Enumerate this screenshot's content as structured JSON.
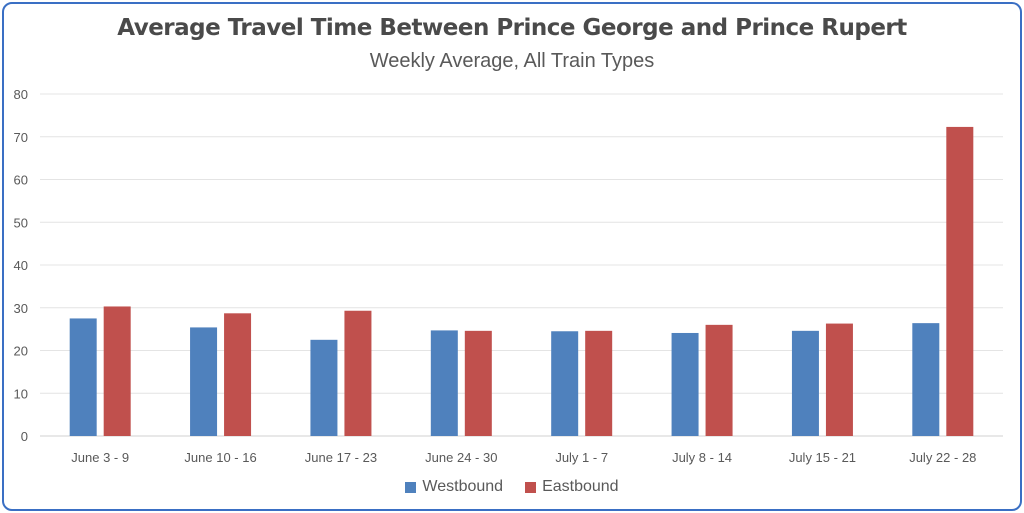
{
  "chart_data": {
    "type": "bar",
    "title": "Average Travel Time Between Prince George and Prince Rupert",
    "subtitle": "Weekly Average, All Train Types",
    "xlabel": "",
    "ylabel": "",
    "ylim": [
      0,
      80
    ],
    "yticks": [
      "0",
      "10",
      "20",
      "30",
      "40",
      "50",
      "60",
      "70",
      "80"
    ],
    "grid": true,
    "legend_position": "bottom",
    "categories": [
      "June 3 - 9",
      "June 10 - 16",
      "June 17 - 23",
      "June 24 - 30",
      "July 1 - 7",
      "July 8 - 14",
      "July 15 - 21",
      "July 22 - 28"
    ],
    "series": [
      {
        "name": "Westbound",
        "color": "#4f81bd",
        "values": [
          27.5,
          25.4,
          22.5,
          24.7,
          24.5,
          24.1,
          24.6,
          26.4
        ]
      },
      {
        "name": "Eastbound",
        "color": "#c0504d",
        "values": [
          30.3,
          28.7,
          29.3,
          24.6,
          24.6,
          26.0,
          26.3,
          72.3
        ]
      }
    ]
  }
}
